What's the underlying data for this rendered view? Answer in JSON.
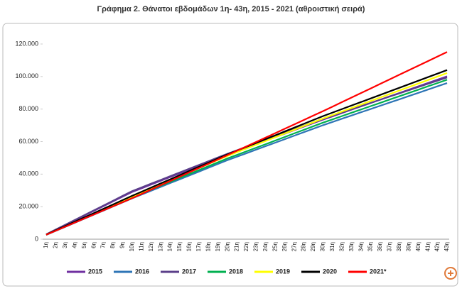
{
  "chart_data": {
    "type": "line",
    "title": "Γράφημα 2. Θάνατοι εβδομάδων 1η- 43η, 2015 - 2021 (αθροιστική σειρά)",
    "categories": [
      "1η",
      "2η",
      "3η",
      "4η",
      "5η",
      "6η",
      "7η",
      "8η",
      "9η",
      "10η",
      "11η",
      "12η",
      "13η",
      "14η",
      "15η",
      "16η",
      "17η",
      "18η",
      "19η",
      "20η",
      "21η",
      "22η",
      "23η",
      "24η",
      "25η",
      "26η",
      "27η",
      "28η",
      "29η",
      "30η",
      "31η",
      "32η",
      "33η",
      "34η",
      "35η",
      "36η",
      "37η",
      "38η",
      "39η",
      "40η",
      "41η",
      "42η",
      "43η"
    ],
    "ylim": [
      0,
      120000
    ],
    "yticks": [
      0,
      {
        "value": 20000,
        "label": "20.000"
      },
      {
        "value": 40000,
        "label": "40.000"
      },
      {
        "value": 60000,
        "label": "60.000"
      },
      {
        "value": 80000,
        "label": "80.000"
      },
      {
        "value": 100000,
        "label": "100.000"
      },
      {
        "value": 120000,
        "label": "120.000"
      }
    ],
    "grid": false,
    "legend": "bottom",
    "series": [
      {
        "name": "2015",
        "color": "#7030a0",
        "values": [
          2900,
          5800,
          8700,
          11600,
          14500,
          17400,
          20300,
          23200,
          26100,
          29000,
          31300,
          33600,
          35900,
          38200,
          40500,
          42800,
          45100,
          47400,
          49700,
          52000,
          54150,
          56300,
          58450,
          60600,
          62750,
          64900,
          67050,
          69200,
          71350,
          73500,
          75550,
          77600,
          79650,
          81700,
          83750,
          85800,
          87850,
          89900,
          91950,
          94000,
          96050,
          98100,
          100150
        ]
      },
      {
        "name": "2016",
        "color": "#2e75b6",
        "values": [
          2600,
          5100,
          7600,
          10100,
          12600,
          15100,
          17600,
          20100,
          22600,
          25100,
          27450,
          29800,
          32150,
          34500,
          36850,
          39200,
          41550,
          43900,
          46250,
          48600,
          50750,
          52900,
          55050,
          57200,
          59350,
          61500,
          63650,
          65800,
          67950,
          70100,
          72090,
          74080,
          76070,
          78060,
          80050,
          82040,
          84030,
          86020,
          88010,
          90000,
          91990,
          93980,
          95970
        ]
      },
      {
        "name": "2017",
        "color": "#5b3f8a",
        "values": [
          3000,
          5950,
          8900,
          11850,
          14800,
          17750,
          20700,
          23650,
          26600,
          29550,
          31850,
          34150,
          36450,
          38750,
          41050,
          43350,
          45650,
          47950,
          50250,
          52550,
          54700,
          56850,
          59000,
          61150,
          63300,
          65450,
          67600,
          69750,
          71900,
          74050,
          76000,
          77950,
          79900,
          81850,
          83800,
          85750,
          87700,
          89650,
          91600,
          93550,
          95500,
          97450,
          99400
        ]
      },
      {
        "name": "2018",
        "color": "#00b050",
        "values": [
          2700,
          5250,
          7800,
          10350,
          12900,
          15450,
          18000,
          20550,
          23100,
          25650,
          28050,
          30450,
          32850,
          35250,
          37650,
          40050,
          42450,
          44850,
          47250,
          49650,
          51850,
          54050,
          56250,
          58450,
          60650,
          62850,
          65050,
          67250,
          69450,
          71650,
          73680,
          75710,
          77740,
          79770,
          81800,
          83830,
          85860,
          87890,
          89920,
          91950,
          93980,
          96010,
          98040
        ]
      },
      {
        "name": "2019",
        "color": "#ffff00",
        "values": [
          2800,
          5400,
          8000,
          10600,
          13200,
          15800,
          18400,
          21000,
          23600,
          26200,
          28700,
          31200,
          33700,
          36200,
          38700,
          41200,
          43700,
          46200,
          48700,
          51200,
          53500,
          55800,
          58100,
          60400,
          62700,
          65000,
          67300,
          69600,
          71900,
          74200,
          76350,
          78500,
          80650,
          82800,
          84950,
          87100,
          89250,
          91400,
          93550,
          95700,
          97850,
          100000,
          102150
        ]
      },
      {
        "name": "2020",
        "color": "#000000",
        "values": [
          2800,
          5450,
          8100,
          10750,
          13400,
          16050,
          18700,
          21350,
          24000,
          26650,
          29200,
          31750,
          34300,
          36850,
          39400,
          41950,
          44500,
          47050,
          49600,
          52150,
          54500,
          56850,
          59200,
          61550,
          63900,
          66250,
          68600,
          70950,
          73300,
          75650,
          77830,
          80010,
          82190,
          84370,
          86550,
          88730,
          90910,
          93090,
          95270,
          97450,
          99630,
          101810,
          103990
        ]
      },
      {
        "name": "2021*",
        "color": "#ff0000",
        "values": [
          2700,
          5200,
          7700,
          10200,
          12700,
          15200,
          17700,
          20200,
          22700,
          25200,
          27850,
          30500,
          33150,
          35800,
          38450,
          41100,
          43750,
          46400,
          49050,
          51700,
          54400,
          57100,
          59800,
          62500,
          65200,
          67900,
          70600,
          73300,
          76000,
          78700,
          81500,
          84300,
          87100,
          89900,
          92700,
          95500,
          98300,
          101100,
          103900,
          106700,
          109500,
          112300,
          115100
        ]
      }
    ]
  }
}
